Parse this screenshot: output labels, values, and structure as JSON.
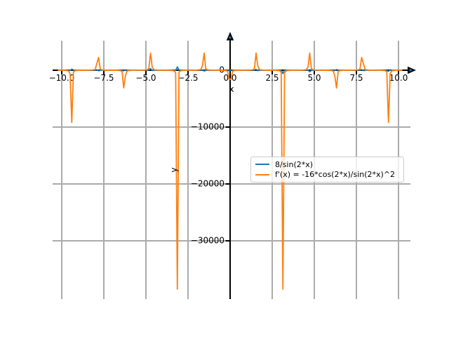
{
  "chart_data": {
    "type": "line",
    "title": "",
    "xlabel": "x",
    "ylabel": "y",
    "grid": true,
    "grid_color": "#ababab",
    "axis_color": "#000000",
    "background": "#ffffff",
    "xlim": [
      -10.5417,
      10.7083
    ],
    "ylim": [
      -40247,
      5185
    ],
    "x_ticks": [
      -10.0,
      -7.5,
      -5.0,
      -2.5,
      0.0,
      2.5,
      5.0,
      7.5,
      10.0
    ],
    "x_tick_labels": [
      "−10.0",
      "−7.5",
      "−5.0",
      "−2.5",
      "0.0",
      "2.5",
      "5.0",
      "7.5",
      "10.0"
    ],
    "y_ticks": [
      0,
      -10000,
      -20000,
      -30000
    ],
    "y_tick_labels": [
      "0",
      "−10000",
      "−20000",
      "−30000"
    ],
    "axis_arrows": {
      "x_axis_end": "right",
      "y_axis_end": "top",
      "arrow_color": "#000000",
      "arrow_dot_color": "#1f77b4"
    },
    "series": [
      {
        "name": "8/sin(2*x)",
        "color": "#1f77b4",
        "fn": "8/Math.sin(2*x)",
        "x_start": -10.2,
        "x_end": 10.2,
        "num_points": 206,
        "clamp": [
          -38500,
          3000
        ]
      },
      {
        "name": "f'(x) = -16*cos(2*x)/sin(2*x)^2",
        "color": "#ff7f0e",
        "fn": "-16*Math.cos(2*x)/Math.pow(Math.sin(2*x),2)",
        "x_start": -10.2,
        "x_end": 10.2,
        "num_points": 206,
        "clamp": [
          -38500,
          3000
        ]
      }
    ],
    "legend": {
      "position": "center-right",
      "entries": [
        "8/sin(2*x)",
        "f'(x) = -16*cos(2*x)/sin(2*x)^2"
      ]
    },
    "notable_features": "vertical asymptotes at multiples of pi/2; large negative spikes near x = -pi and x = +pi reaching about -38000"
  }
}
